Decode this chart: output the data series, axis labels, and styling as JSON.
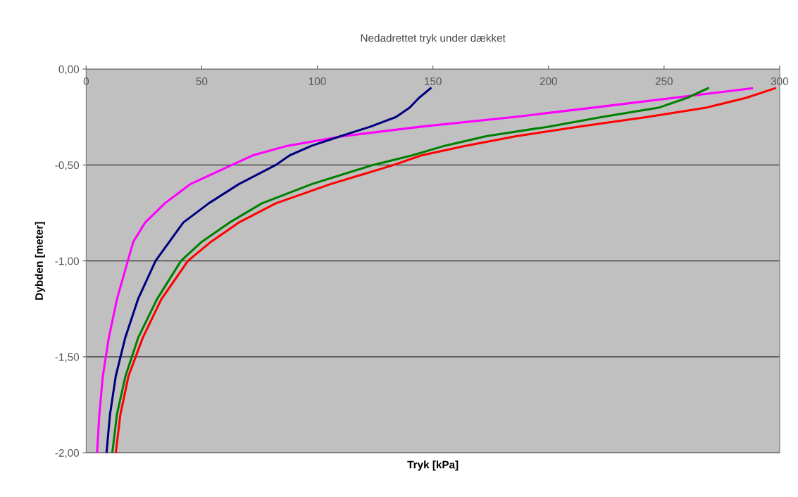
{
  "chart_data": {
    "type": "line",
    "title": "Nedadrettet tryk under dækket",
    "xlabel": "Tryk [kPa]",
    "ylabel": "Dybden [meter]",
    "xlim": [
      0,
      300
    ],
    "xticks": [
      0,
      50,
      100,
      150,
      200,
      250,
      300
    ],
    "ylim": [
      -2,
      0
    ],
    "yticks": [
      {
        "value": -2,
        "label": "-2,00"
      },
      {
        "value": -1.5,
        "label": "-1,50"
      },
      {
        "value": -1,
        "label": "-1,00"
      },
      {
        "value": -0.5,
        "label": "-0,50"
      },
      {
        "value": 0,
        "label": "0,00"
      }
    ],
    "grid": "y",
    "marker": "none",
    "line_style": "solid",
    "series": [
      {
        "color": "#ff00ff",
        "x": [
          288,
          220,
          185,
          145,
          111,
          87,
          72,
          63,
          45,
          34,
          25.5,
          20.4,
          18,
          13.3,
          9.8,
          7.2,
          5.7,
          4.7
        ],
        "values": [
          -0.1,
          -0.2,
          -0.25,
          -0.3,
          -0.35,
          -0.4,
          -0.45,
          -0.5,
          -0.6,
          -0.7,
          -0.8,
          -0.9,
          -1.0,
          -1.2,
          -1.4,
          -1.6,
          -1.8,
          -2.0
        ]
      },
      {
        "color": "#000080",
        "x": [
          149,
          144,
          140,
          134,
          123,
          110,
          97.5,
          88,
          82,
          66,
          53,
          42,
          36,
          30,
          22.4,
          16.9,
          12.8,
          10.3,
          8.8
        ],
        "values": [
          -0.1,
          -0.15,
          -0.2,
          -0.25,
          -0.3,
          -0.35,
          -0.4,
          -0.45,
          -0.5,
          -0.6,
          -0.7,
          -0.8,
          -0.9,
          -1.0,
          -1.2,
          -1.4,
          -1.6,
          -1.8,
          -2.0
        ]
      },
      {
        "color": "#008000",
        "x": [
          269,
          260,
          248,
          223,
          200,
          173,
          155,
          141,
          124,
          97.5,
          76,
          62,
          50,
          41,
          30.6,
          22.5,
          17,
          13.3,
          11.3
        ],
        "values": [
          -0.1,
          -0.15,
          -0.2,
          -0.25,
          -0.3,
          -0.35,
          -0.4,
          -0.45,
          -0.5,
          -0.6,
          -0.7,
          -0.8,
          -0.9,
          -1.0,
          -1.2,
          -1.4,
          -1.6,
          -1.8,
          -2.0
        ]
      },
      {
        "color": "#ff0000",
        "x": [
          298,
          285.5,
          268.6,
          242.6,
          213,
          186,
          164,
          145,
          133,
          105.6,
          82,
          66,
          54,
          44,
          32.5,
          24.5,
          18.3,
          14.8,
          12.8
        ],
        "values": [
          -0.1,
          -0.15,
          -0.2,
          -0.25,
          -0.3,
          -0.35,
          -0.4,
          -0.45,
          -0.5,
          -0.6,
          -0.7,
          -0.8,
          -0.9,
          -1.0,
          -1.2,
          -1.4,
          -1.6,
          -1.8,
          -2.0
        ]
      }
    ]
  }
}
